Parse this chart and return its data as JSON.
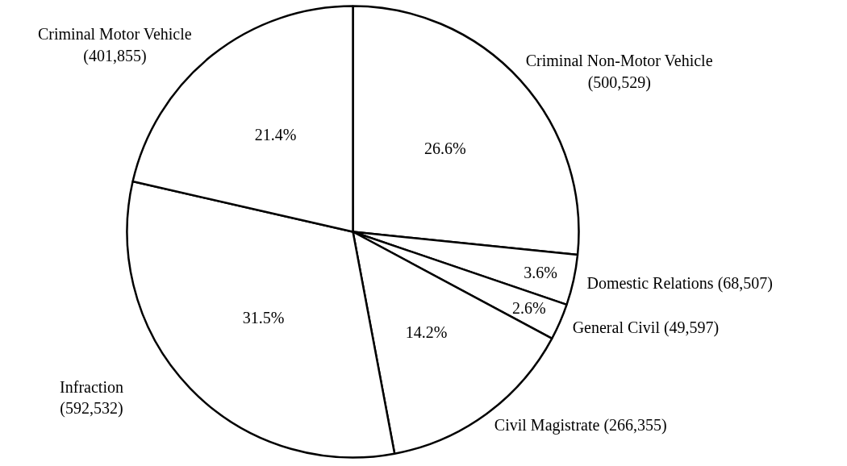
{
  "chart_data": {
    "type": "pie",
    "categories": [
      "Criminal Non-Motor Vehicle\n(500,529)",
      "Domestic Relations   (68,507)",
      "General Civil   (49,597)",
      "Civil Magistrate   (266,355)",
      "Infraction\n(592,532)",
      "Criminal Motor Vehicle\n(401,855)"
    ],
    "values": [
      26.6,
      3.6,
      2.6,
      14.2,
      31.5,
      21.4
    ],
    "colors": [
      "#ffffff",
      "#ffffff",
      "#ffffff",
      "#ffffff",
      "#ffffff",
      "#ffffff"
    ],
    "value_labels": [
      "26.6%",
      "3.6%",
      "2.6%",
      "14.2%",
      "31.5%",
      "21.4%"
    ]
  }
}
